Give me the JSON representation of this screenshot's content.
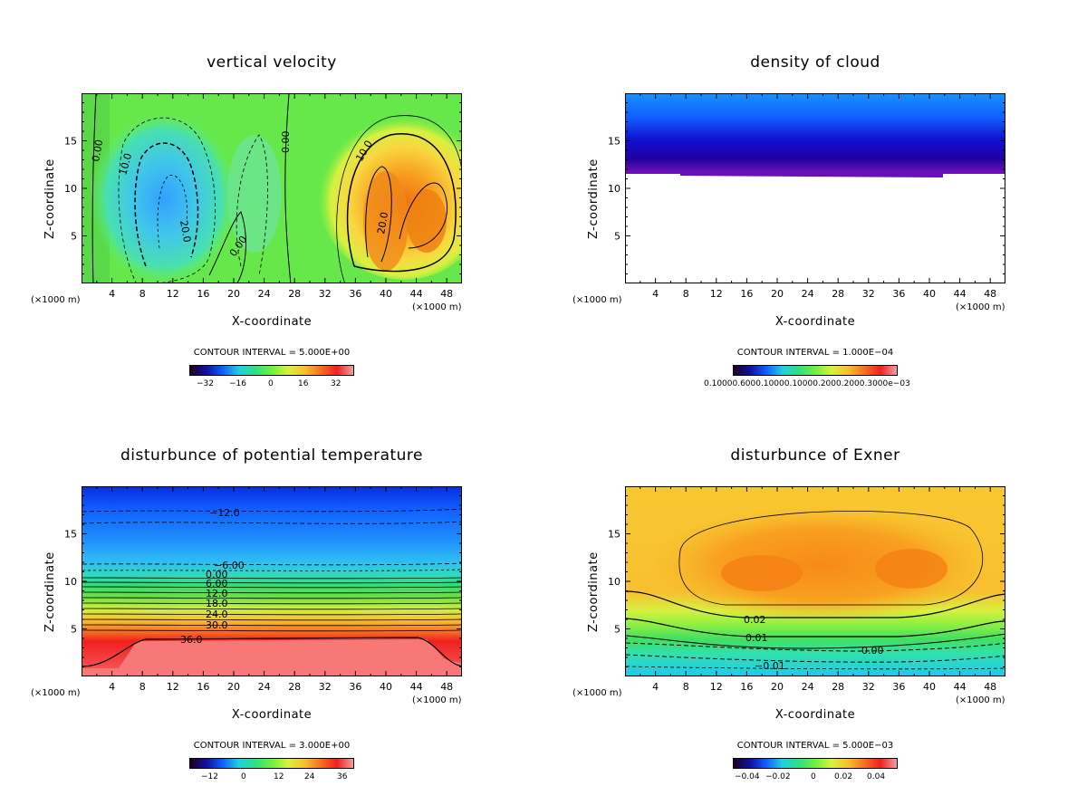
{
  "chart_data": [
    {
      "type": "heatmap",
      "title": "vertical velocity",
      "xlabel": "X-coordinate",
      "ylabel": "Z-coordinate",
      "x_unit": "(×1000 m)",
      "xlim": [
        0,
        50
      ],
      "ylim": [
        0,
        20
      ],
      "xticks": [
        "4",
        "8",
        "12",
        "16",
        "20",
        "24",
        "28",
        "32",
        "36",
        "40",
        "44",
        "48"
      ],
      "yticks": [
        "5",
        "10",
        "15"
      ],
      "contour_interval": "CONTOUR INTERVAL = 5.000E+00",
      "colorbar_ticks": [
        "−32",
        "−16",
        "0",
        "16",
        "32"
      ],
      "contour_labels": [
        "0.00",
        "10.0",
        "20.0",
        "0.00",
        "0.00",
        "10.0",
        "20.0"
      ]
    },
    {
      "type": "heatmap",
      "title": "density of cloud",
      "xlabel": "X-coordinate",
      "ylabel": "Z-coordinate",
      "x_unit": "(×1000 m)",
      "xlim": [
        0,
        50
      ],
      "ylim": [
        0,
        20
      ],
      "xticks": [
        "4",
        "8",
        "12",
        "16",
        "20",
        "24",
        "28",
        "32",
        "36",
        "40",
        "44",
        "48"
      ],
      "yticks": [
        "5",
        "10",
        "15"
      ],
      "contour_interval": "CONTOUR INTERVAL = 1.000E−04",
      "colorbar_ticks": [
        "0.10000.6000.10000.10000.2000.2000.3000e−03"
      ],
      "cloud_base_z": 12
    },
    {
      "type": "heatmap",
      "title": "disturbunce of potential temperature",
      "xlabel": "X-coordinate",
      "ylabel": "Z-coordinate",
      "x_unit": "(×1000 m)",
      "xlim": [
        0,
        50
      ],
      "ylim": [
        0,
        20
      ],
      "xticks": [
        "4",
        "8",
        "12",
        "16",
        "20",
        "24",
        "28",
        "32",
        "36",
        "40",
        "44",
        "48"
      ],
      "yticks": [
        "5",
        "10",
        "15"
      ],
      "contour_interval": "CONTOUR INTERVAL = 3.000E+00",
      "colorbar_ticks": [
        "−12",
        "0",
        "12",
        "24",
        "36"
      ],
      "contour_labels": [
        "−12.0",
        "−6.00",
        "0.00",
        "6.00",
        "12.0",
        "18.0",
        "24.0",
        "30.0",
        "36.0"
      ]
    },
    {
      "type": "heatmap",
      "title": "disturbunce of Exner",
      "xlabel": "X-coordinate",
      "ylabel": "Z-coordinate",
      "x_unit": "(×1000 m)",
      "xlim": [
        0,
        50
      ],
      "ylim": [
        0,
        20
      ],
      "xticks": [
        "4",
        "8",
        "12",
        "16",
        "20",
        "24",
        "28",
        "32",
        "36",
        "40",
        "44",
        "48"
      ],
      "yticks": [
        "5",
        "10",
        "15"
      ],
      "contour_interval": "CONTOUR INTERVAL = 5.000E−03",
      "colorbar_ticks": [
        "−0.04",
        "−0.02",
        "0",
        "0.02",
        "0.04"
      ],
      "contour_labels": [
        "0.02",
        "0.01",
        "0.00",
        "−0.01"
      ]
    }
  ]
}
